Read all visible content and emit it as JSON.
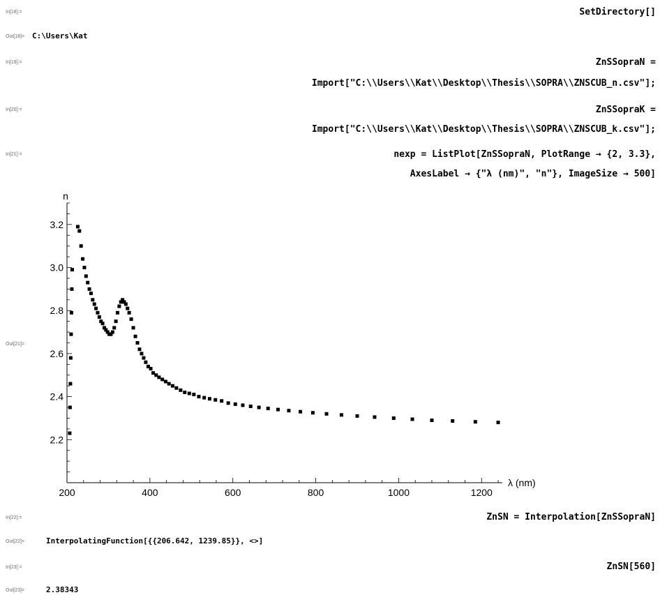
{
  "cells": {
    "c18": {
      "in_label": "In[18]:=",
      "code": "SetDirectory[]",
      "out_label": "Out[18]=",
      "out": "C:\\Users\\Kat"
    },
    "c19": {
      "in_label": "In[19]:=",
      "code_line1": "ZnSSopraN =",
      "code_line2": "Import[\"C:\\\\Users\\\\Kat\\\\Desktop\\\\Thesis\\\\SOPRA\\\\ZNSCUB_n.csv\"];"
    },
    "c20": {
      "in_label": "In[20]:=",
      "code_line1": "ZnSSopraK =",
      "code_line2": "Import[\"C:\\\\Users\\\\Kat\\\\Desktop\\\\Thesis\\\\SOPRA\\\\ZNSCUB_k.csv\"];"
    },
    "c21": {
      "in_label": "In[21]:=",
      "code_line1": "nexp = ListPlot[ZnSSopraN, PlotRange → {2, 3.3},",
      "code_line2": "AxesLabel → {\"λ (nm)\", \"n\"}, ImageSize → 500]",
      "out_label": "Out[21]="
    },
    "c22": {
      "in_label": "In[22]:=",
      "code": "ZnSN = Interpolation[ZnSSopraN]",
      "out_label": "Out[22]=",
      "out": "InterpolatingFunction[{{206.642, 1239.85}}, <>]"
    },
    "c23": {
      "in_label": "In[23]:=",
      "code": "ZnSN[560]",
      "out_label": "Out[23]=",
      "out": "2.38343"
    }
  },
  "chart_data": {
    "type": "scatter",
    "xlabel": "λ (nm)",
    "ylabel": "n",
    "xlim": [
      200,
      1250
    ],
    "ylim": [
      2.0,
      3.3
    ],
    "x_ticks": [
      200,
      400,
      600,
      800,
      1000,
      1200
    ],
    "x_tick_labels": [
      "200",
      "400",
      "600",
      "800",
      "1000",
      "1200"
    ],
    "y_ticks": [
      2.2,
      2.4,
      2.6,
      2.8,
      3.0,
      3.2
    ],
    "y_tick_labels": [
      "2.2",
      "2.4",
      "2.6",
      "2.8",
      "3.0",
      "3.2"
    ],
    "marker_color": "#000000",
    "grid": false,
    "points": [
      [
        206.6,
        2.23
      ],
      [
        207.4,
        2.35
      ],
      [
        208.3,
        2.46
      ],
      [
        209.1,
        2.58
      ],
      [
        210.0,
        2.69
      ],
      [
        210.9,
        2.79
      ],
      [
        211.7,
        2.9
      ],
      [
        212.6,
        2.99
      ],
      [
        226,
        3.19
      ],
      [
        230,
        3.17
      ],
      [
        234,
        3.1
      ],
      [
        238,
        3.04
      ],
      [
        242,
        3.0
      ],
      [
        246,
        2.96
      ],
      [
        250,
        2.93
      ],
      [
        254,
        2.9
      ],
      [
        258,
        2.88
      ],
      [
        262,
        2.85
      ],
      [
        266,
        2.83
      ],
      [
        270,
        2.81
      ],
      [
        274,
        2.79
      ],
      [
        278,
        2.77
      ],
      [
        282,
        2.75
      ],
      [
        286,
        2.74
      ],
      [
        290,
        2.72
      ],
      [
        294,
        2.71
      ],
      [
        298,
        2.7
      ],
      [
        302,
        2.69
      ],
      [
        306,
        2.69
      ],
      [
        310,
        2.7
      ],
      [
        314,
        2.72
      ],
      [
        318,
        2.75
      ],
      [
        322,
        2.79
      ],
      [
        326,
        2.82
      ],
      [
        330,
        2.84
      ],
      [
        334,
        2.85
      ],
      [
        338,
        2.84
      ],
      [
        342,
        2.83
      ],
      [
        346,
        2.81
      ],
      [
        350,
        2.79
      ],
      [
        355,
        2.76
      ],
      [
        360,
        2.72
      ],
      [
        365,
        2.68
      ],
      [
        370,
        2.65
      ],
      [
        375,
        2.62
      ],
      [
        380,
        2.6
      ],
      [
        385,
        2.58
      ],
      [
        390,
        2.56
      ],
      [
        396,
        2.54
      ],
      [
        402,
        2.53
      ],
      [
        408,
        2.51
      ],
      [
        415,
        2.5
      ],
      [
        422,
        2.49
      ],
      [
        430,
        2.48
      ],
      [
        438,
        2.47
      ],
      [
        446,
        2.46
      ],
      [
        455,
        2.45
      ],
      [
        464,
        2.44
      ],
      [
        474,
        2.43
      ],
      [
        484,
        2.42
      ],
      [
        495,
        2.415
      ],
      [
        506,
        2.41
      ],
      [
        518,
        2.4
      ],
      [
        531,
        2.395
      ],
      [
        544,
        2.39
      ],
      [
        558,
        2.385
      ],
      [
        573,
        2.38
      ],
      [
        589,
        2.37
      ],
      [
        606,
        2.365
      ],
      [
        624,
        2.36
      ],
      [
        643,
        2.355
      ],
      [
        663,
        2.35
      ],
      [
        685,
        2.345
      ],
      [
        709,
        2.34
      ],
      [
        735,
        2.335
      ],
      [
        763,
        2.33
      ],
      [
        793,
        2.325
      ],
      [
        826,
        2.32
      ],
      [
        862,
        2.315
      ],
      [
        900,
        2.31
      ],
      [
        942,
        2.305
      ],
      [
        988,
        2.3
      ],
      [
        1033,
        2.295
      ],
      [
        1080,
        2.29
      ],
      [
        1130,
        2.287
      ],
      [
        1185,
        2.283
      ],
      [
        1240,
        2.28
      ]
    ]
  }
}
